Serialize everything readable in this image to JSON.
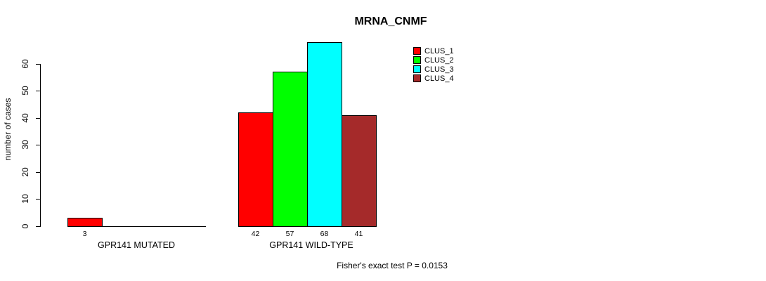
{
  "chart_data": {
    "type": "bar",
    "title": "MRNA_CNMF",
    "ylabel": "number of cases",
    "xlabel": "",
    "categories": [
      "GPR141 MUTATED",
      "GPR141 WILD-TYPE"
    ],
    "series": [
      {
        "name": "CLUS_1",
        "color": "#FF0000",
        "values": [
          3,
          42
        ]
      },
      {
        "name": "CLUS_2",
        "color": "#00FF00",
        "values": [
          0,
          57
        ]
      },
      {
        "name": "CLUS_3",
        "color": "#00FFFF",
        "values": [
          0,
          68
        ]
      },
      {
        "name": "CLUS_4",
        "color": "#A52A2A",
        "values": [
          0,
          41
        ]
      }
    ],
    "bar_value_labels": [
      [
        "3",
        "",
        "",
        ""
      ],
      [
        "42",
        "57",
        "68",
        "41"
      ]
    ],
    "y_ticks": [
      0,
      10,
      20,
      30,
      40,
      50,
      60
    ],
    "ylim": [
      0,
      68
    ],
    "grid": false,
    "legend_position": "top-right",
    "annotation": "Fisher's exact test P = 0.0153"
  }
}
